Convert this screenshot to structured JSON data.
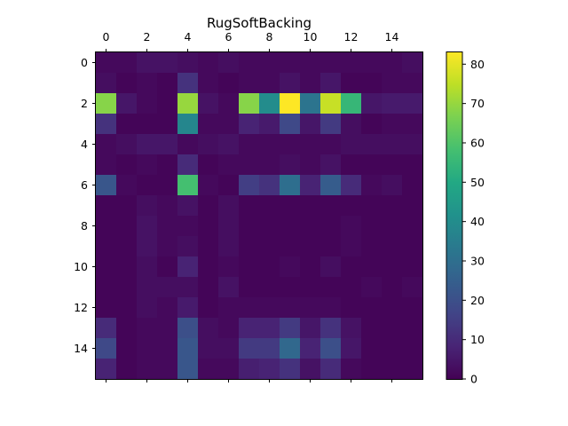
{
  "chart_data": {
    "type": "heatmap",
    "title": "RugSoftBacking",
    "xlabel": "",
    "ylabel": "",
    "x_tick_position": "top",
    "x_ticks": [
      0,
      2,
      4,
      6,
      8,
      10,
      12,
      14
    ],
    "y_ticks": [
      0,
      2,
      4,
      6,
      8,
      10,
      12,
      14
    ],
    "colorbar_ticks": [
      0,
      10,
      20,
      30,
      40,
      50,
      60,
      70,
      80
    ],
    "colormap": "viridis",
    "vmin": 0,
    "vmax": 83,
    "grid": false,
    "colorbar_placement": "right",
    "values": [
      [
        2,
        2,
        4,
        4,
        3,
        2,
        3,
        2,
        2,
        2,
        2,
        2,
        2,
        2,
        2,
        3
      ],
      [
        3,
        1,
        2,
        1,
        12,
        2,
        1,
        2,
        2,
        4,
        2,
        5,
        1,
        1,
        2,
        2
      ],
      [
        68,
        5,
        2,
        1,
        70,
        4,
        2,
        68,
        40,
        83,
        32,
        76,
        55,
        5,
        6,
        6
      ],
      [
        12,
        1,
        1,
        1,
        38,
        2,
        2,
        8,
        6,
        18,
        5,
        14,
        3,
        1,
        2,
        2
      ],
      [
        2,
        3,
        5,
        5,
        2,
        3,
        4,
        2,
        2,
        2,
        2,
        2,
        3,
        3,
        3,
        3
      ],
      [
        2,
        1,
        2,
        1,
        10,
        1,
        2,
        2,
        2,
        3,
        2,
        4,
        1,
        1,
        1,
        1
      ],
      [
        22,
        2,
        1,
        1,
        58,
        2,
        1,
        15,
        12,
        30,
        8,
        24,
        10,
        2,
        3,
        1
      ],
      [
        1,
        1,
        3,
        2,
        4,
        1,
        3,
        1,
        1,
        1,
        1,
        1,
        1,
        1,
        1,
        1
      ],
      [
        1,
        1,
        4,
        2,
        2,
        1,
        3,
        1,
        1,
        1,
        1,
        1,
        2,
        1,
        1,
        1
      ],
      [
        1,
        1,
        4,
        2,
        3,
        1,
        3,
        1,
        1,
        1,
        1,
        1,
        2,
        1,
        1,
        1
      ],
      [
        1,
        1,
        3,
        1,
        8,
        1,
        2,
        1,
        1,
        2,
        1,
        3,
        1,
        1,
        1,
        1
      ],
      [
        1,
        1,
        3,
        3,
        3,
        1,
        4,
        1,
        1,
        1,
        1,
        1,
        1,
        2,
        1,
        2
      ],
      [
        1,
        1,
        3,
        2,
        6,
        1,
        2,
        2,
        2,
        2,
        2,
        2,
        1,
        1,
        1,
        1
      ],
      [
        10,
        1,
        2,
        2,
        20,
        3,
        2,
        8,
        8,
        14,
        5,
        12,
        4,
        1,
        1,
        1
      ],
      [
        18,
        1,
        2,
        2,
        22,
        3,
        3,
        14,
        14,
        28,
        8,
        20,
        5,
        1,
        1,
        1
      ],
      [
        8,
        1,
        2,
        2,
        22,
        2,
        2,
        7,
        8,
        12,
        4,
        10,
        2,
        1,
        1,
        1
      ]
    ]
  }
}
